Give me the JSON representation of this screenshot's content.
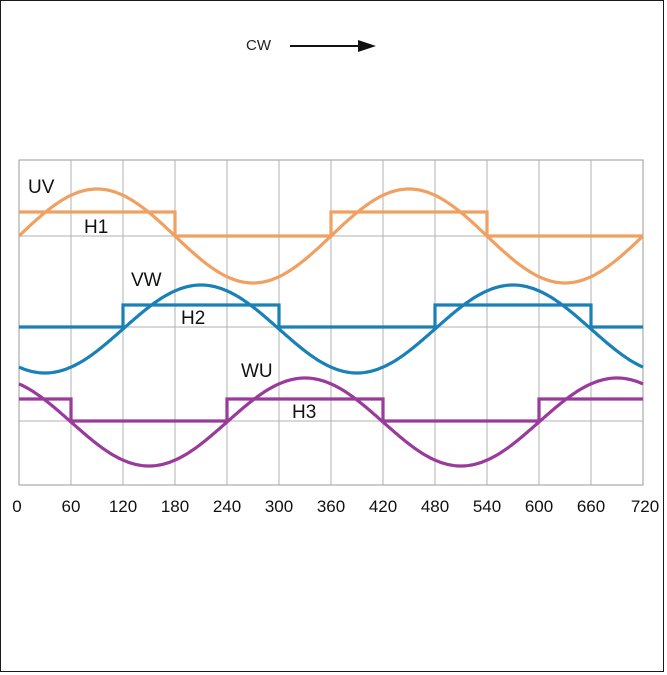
{
  "direction": {
    "label": "CW",
    "arrow": "arrow-right-icon"
  },
  "chart_data": {
    "type": "line",
    "x_ticks": [
      "0",
      "60",
      "120",
      "180",
      "240",
      "300",
      "360",
      "420",
      "480",
      "540",
      "600",
      "660",
      "720"
    ],
    "xlim": [
      0,
      720
    ],
    "grid": true,
    "series": [
      {
        "name": "UV",
        "kind": "sine",
        "phase": 0,
        "color": "#f0a060"
      },
      {
        "name": "H1",
        "kind": "square",
        "high_from": 0,
        "color": "#f0a060"
      },
      {
        "name": "VW",
        "kind": "sine",
        "phase": 120,
        "color": "#1a80b8"
      },
      {
        "name": "H2",
        "kind": "square",
        "high_from": 120,
        "color": "#1a80b8"
      },
      {
        "name": "WU",
        "kind": "sine",
        "phase": 240,
        "color": "#9a3a9a"
      },
      {
        "name": "H3",
        "kind": "square",
        "high_from": 240,
        "color": "#9a3a9a"
      }
    ]
  }
}
